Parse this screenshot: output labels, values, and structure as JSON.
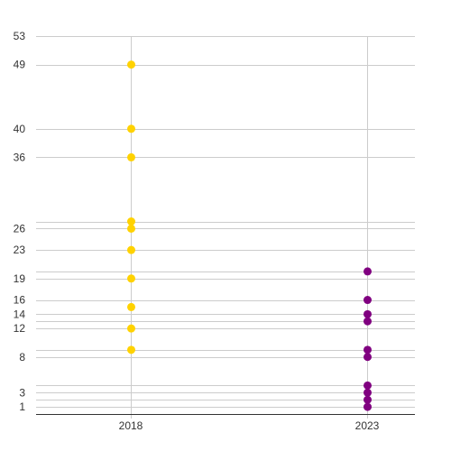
{
  "chart_data": {
    "type": "scatter",
    "title": "",
    "xlabel": "",
    "ylabel": "",
    "categories": [
      "2018",
      "2023"
    ],
    "ylim": [
      0,
      53
    ],
    "yticks": [
      1,
      3,
      8,
      12,
      14,
      16,
      19,
      23,
      26,
      36,
      40,
      49,
      53
    ],
    "extra_gridlines": [
      2,
      4,
      9,
      13,
      20,
      27
    ],
    "grid": true,
    "legend": "none",
    "series": [
      {
        "category": "2018",
        "color": "#FFD200",
        "values": [
          9,
          12,
          15,
          19,
          23,
          26,
          27,
          36,
          40,
          49
        ]
      },
      {
        "category": "2023",
        "color": "#800080",
        "values": [
          1,
          2,
          3,
          4,
          8,
          9,
          13,
          14,
          16,
          20
        ]
      }
    ]
  }
}
